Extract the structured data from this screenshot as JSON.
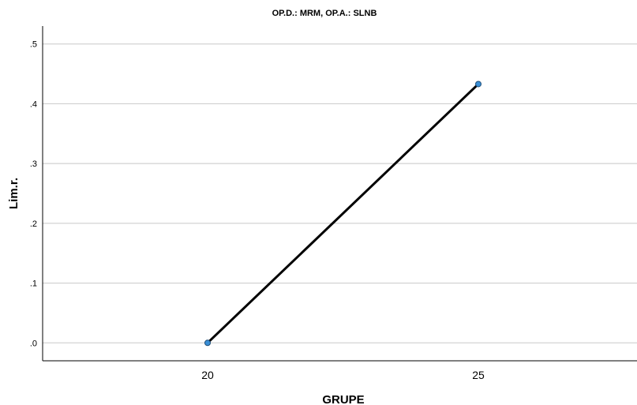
{
  "chart_data": {
    "type": "line",
    "title": "OP.D.: MRM, OP.A.: SLNB",
    "xlabel": "GRUPE",
    "ylabel": "Lim.r.",
    "categories": [
      "20",
      "25"
    ],
    "series": [
      {
        "values": [
          0.0,
          0.433
        ]
      }
    ],
    "yticks": [
      ".0",
      ".1",
      ".2",
      ".3",
      ".4",
      ".5"
    ],
    "ytick_values": [
      0,
      0.1,
      0.2,
      0.3,
      0.4,
      0.5
    ],
    "ylim": [
      -0.03,
      0.53
    ],
    "grid": true,
    "legend": "none",
    "colors": {
      "line": "#000000",
      "marker": "#3a8fd6",
      "marker_edge": "#1f4e79"
    }
  }
}
